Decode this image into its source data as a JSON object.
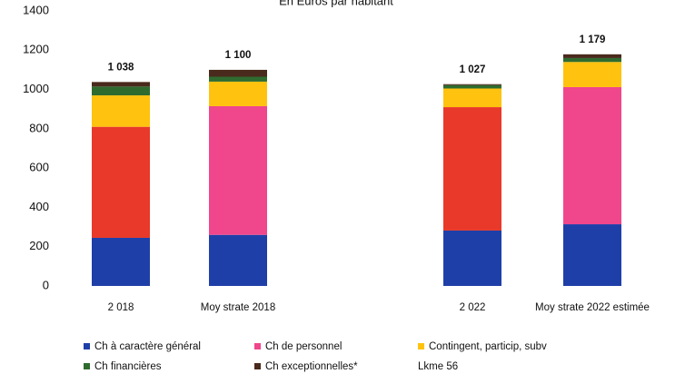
{
  "chart_data": {
    "type": "stacked_bar",
    "title": "En Euros par habitant",
    "categories": [
      "2 018",
      "Moy strate 2018",
      "2 022",
      "Moy strate 2022 estimée"
    ],
    "series": [
      {
        "name": "Ch à caractère général",
        "color": "#1f3fa8",
        "values": [
          245,
          260,
          282,
          314
        ]
      },
      {
        "name": "Ch de personnel",
        "color": "#f0468c",
        "bar_colors": [
          "#e8392a",
          "#f0468c",
          "#e8392a",
          "#f0468c"
        ],
        "values": [
          565,
          655,
          628,
          698
        ]
      },
      {
        "name": "Contingent, particip, subv",
        "color": "#ffc20e",
        "values": [
          160,
          125,
          95,
          128
        ]
      },
      {
        "name": "Ch financières",
        "color": "#2f6b2f",
        "values": [
          45,
          25,
          17,
          20
        ]
      },
      {
        "name": "Ch exceptionnelles*",
        "color": "#4a2a1c",
        "values": [
          23,
          35,
          5,
          19
        ]
      }
    ],
    "totals": [
      1038,
      1100,
      1027,
      1179
    ],
    "total_labels": [
      "1 038",
      "1 100",
      "1 027",
      "1 179"
    ],
    "note": "Lkme 56",
    "ylim": [
      0,
      1400
    ],
    "yticks": [
      0,
      200,
      400,
      600,
      800,
      1000,
      1200,
      1400
    ],
    "grid": false
  }
}
